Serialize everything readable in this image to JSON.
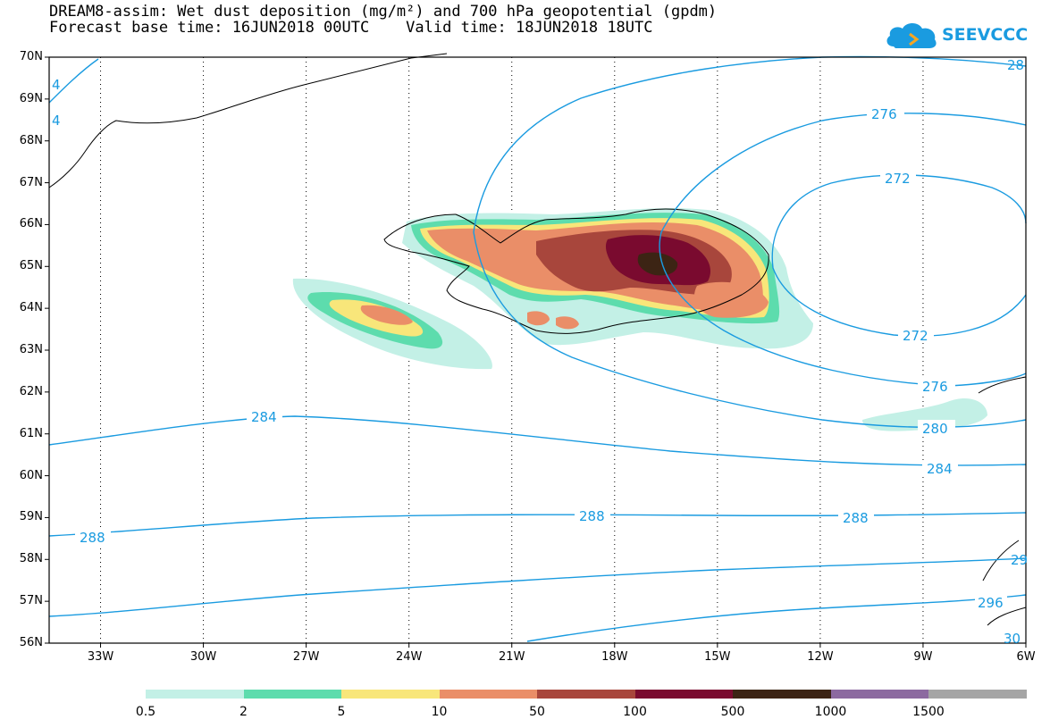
{
  "title_line1": "DREAM8-assim: Wet dust deposition (mg/m²) and 700 hPa geopotential (gpdm)",
  "title_line2": "Forecast base time: 16JUN2018 00UTC    Valid time: 18JUN2018 18UTC",
  "logo": {
    "text": "SEEVCCC",
    "icon": "cloud-icon",
    "color": "#1a9be0"
  },
  "lat_labels": [
    "70N",
    "69N",
    "68N",
    "67N",
    "66N",
    "65N",
    "64N",
    "63N",
    "62N",
    "61N",
    "60N",
    "59N",
    "58N",
    "57N",
    "56N"
  ],
  "lon_labels": [
    "33W",
    "30W",
    "27W",
    "24W",
    "21W",
    "18W",
    "15W",
    "12W",
    "9W",
    "6W"
  ],
  "colorbar": {
    "colors": [
      "#c3f0e6",
      "#5ddcad",
      "#f8e67a",
      "#ea8e68",
      "#a8463c",
      "#7a0a2f",
      "#3c2414",
      "#8c6aa0",
      "#a5a5a5"
    ],
    "labels": [
      "0.5",
      "2",
      "5",
      "10",
      "50",
      "100",
      "500",
      "1000",
      "1500"
    ]
  },
  "contour_labels": {
    "c272a": "272",
    "c272b": "272",
    "c276a": "276",
    "c276b": "276",
    "c280": "280",
    "c284a": "284",
    "c284b": "284",
    "c288a": "288",
    "c288b": "288",
    "c288c": "288",
    "c296": "296",
    "c28e": "28",
    "c29e": "29",
    "c30e": "30",
    "c4a": "4",
    "c4b": "4"
  },
  "colors": {
    "contour": "#1a9be0"
  }
}
